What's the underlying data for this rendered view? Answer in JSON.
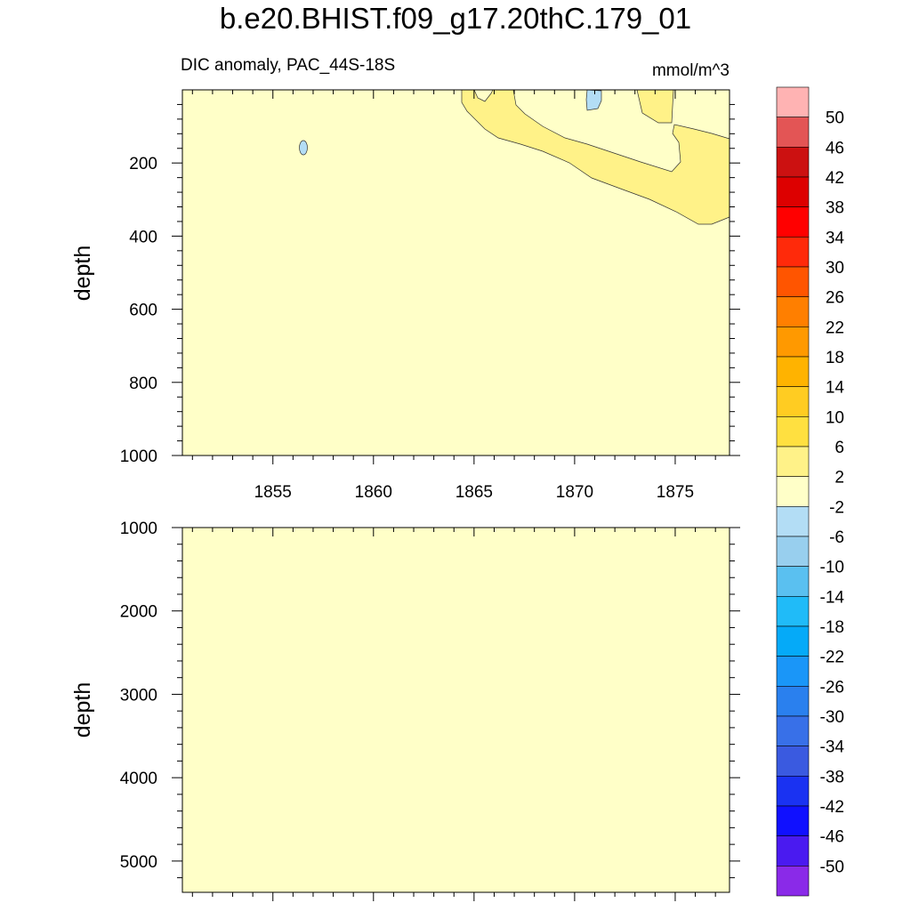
{
  "title": "b.e20.BHIST.f09_g17.20thC.179_01",
  "subtitle_left": "DIC anomaly, PAC_44S-18S",
  "subtitle_right": "mmol/m^3",
  "chart_data": [
    {
      "type": "heatmap",
      "panel": "upper",
      "ylabel": "depth",
      "xlabel": "",
      "y_reversed": true,
      "xlim": [
        1850.5,
        1877.7
      ],
      "ylim": [
        0,
        1000
      ],
      "x_ticks": [
        1855,
        1860,
        1865,
        1870,
        1875
      ],
      "x_tick_labels": [
        "1855",
        "1860",
        "1865",
        "1870",
        "1875"
      ],
      "y_ticks": [
        200,
        400,
        600,
        800,
        1000
      ],
      "y_tick_labels": [
        "200",
        "400",
        "600",
        "800",
        "1000"
      ],
      "background_level": "-2 to 2",
      "regions": [
        {
          "level": "2 to 6",
          "description_values": {
            "x_start": 1864.6,
            "x_end": 1877.7,
            "depth_max": 380
          }
        },
        {
          "level": "-2 to 2",
          "description_values": {
            "x_start": 1866,
            "x_end": 1873,
            "depth_max": 220
          }
        },
        {
          "level": "-6 to -2",
          "description_values": {
            "x": 1856.5,
            "depth": 160
          }
        },
        {
          "level": "-6 to -2",
          "description_values": {
            "x": 1870.8,
            "depth": 30
          }
        }
      ]
    },
    {
      "type": "heatmap",
      "panel": "lower",
      "ylabel": "depth",
      "xlabel": "",
      "y_reversed": true,
      "xlim": [
        1850.5,
        1877.7
      ],
      "ylim": [
        1000,
        5375
      ],
      "y_ticks": [
        1000,
        2000,
        3000,
        4000,
        5000
      ],
      "y_tick_labels": [
        "1000",
        "2000",
        "3000",
        "4000",
        "5000"
      ],
      "background_level": "-2 to 2"
    }
  ],
  "colorbar": {
    "labels": [
      "50",
      "46",
      "42",
      "38",
      "34",
      "30",
      "26",
      "22",
      "18",
      "14",
      "10",
      "6",
      "2",
      "-2",
      "-6",
      "-10",
      "-14",
      "-18",
      "-22",
      "-26",
      "-30",
      "-34",
      "-38",
      "-42",
      "-46",
      "-50"
    ],
    "colors": [
      "#ffb3b3",
      "#e35555",
      "#cc1111",
      "#dd0000",
      "#ff0000",
      "#ff2a0a",
      "#ff5500",
      "#ff7f00",
      "#ff9900",
      "#ffb300",
      "#ffcc22",
      "#ffe040",
      "#fff288",
      "#ffffc8",
      "#b3ddf5",
      "#98cfee",
      "#5ac0f0",
      "#20bbf8",
      "#05aaf8",
      "#1a96f8",
      "#2a80ee",
      "#3870e8",
      "#3a5ae0",
      "#1a32f2",
      "#1010ff",
      "#4a1af0",
      "#8a2ae8"
    ]
  }
}
